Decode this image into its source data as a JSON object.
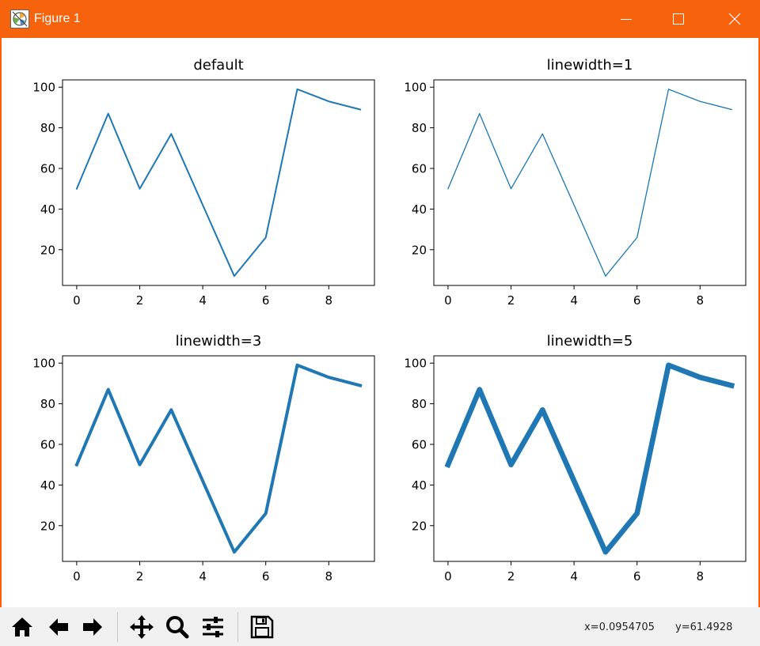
{
  "window": {
    "title": "Figure 1",
    "accent_color": "#f7630c",
    "controls": [
      "minimize-icon",
      "maximize-icon",
      "close-icon"
    ]
  },
  "toolbar": {
    "buttons": [
      {
        "name": "home-button",
        "icon": "home-icon"
      },
      {
        "name": "back-button",
        "icon": "arrow-left-icon"
      },
      {
        "name": "forward-button",
        "icon": "arrow-right-icon"
      },
      {
        "name": "pan-button",
        "icon": "move-icon"
      },
      {
        "name": "zoom-button",
        "icon": "magnifier-icon"
      },
      {
        "name": "subplots-button",
        "icon": "sliders-icon"
      },
      {
        "name": "save-button",
        "icon": "floppy-icon"
      }
    ],
    "coords_x": "x=0.0954705",
    "coords_y": "y=61.4928"
  },
  "chart_data": [
    {
      "type": "line",
      "title": "default",
      "x": [
        0,
        1,
        2,
        3,
        4,
        5,
        6,
        7,
        8,
        9
      ],
      "series": [
        {
          "values": [
            50,
            87,
            50,
            77,
            42,
            7,
            26,
            99,
            93,
            89
          ],
          "color": "#1f77b4",
          "linewidth": 1.5
        }
      ],
      "xlim": [
        -0.45,
        9.45
      ],
      "ylim": [
        2.4,
        103.6
      ],
      "xticks": [
        0,
        2,
        4,
        6,
        8
      ],
      "yticks": [
        20,
        40,
        60,
        80,
        100
      ],
      "xtick_labels": [
        "0",
        "2",
        "4",
        "6",
        "8"
      ],
      "ytick_labels": [
        "20",
        "40",
        "60",
        "80",
        "100"
      ],
      "xlabel": "",
      "ylabel": "",
      "grid": false
    },
    {
      "type": "line",
      "title": "linewidth=1",
      "x": [
        0,
        1,
        2,
        3,
        4,
        5,
        6,
        7,
        8,
        9
      ],
      "series": [
        {
          "values": [
            50,
            87,
            50,
            77,
            42,
            7,
            26,
            99,
            93,
            89
          ],
          "color": "#1f77b4",
          "linewidth": 1
        }
      ],
      "xlim": [
        -0.45,
        9.45
      ],
      "ylim": [
        2.4,
        103.6
      ],
      "xticks": [
        0,
        2,
        4,
        6,
        8
      ],
      "yticks": [
        20,
        40,
        60,
        80,
        100
      ],
      "xtick_labels": [
        "0",
        "2",
        "4",
        "6",
        "8"
      ],
      "ytick_labels": [
        "20",
        "40",
        "60",
        "80",
        "100"
      ],
      "xlabel": "",
      "ylabel": "",
      "grid": false
    },
    {
      "type": "line",
      "title": "linewidth=3",
      "x": [
        0,
        1,
        2,
        3,
        4,
        5,
        6,
        7,
        8,
        9
      ],
      "series": [
        {
          "values": [
            50,
            87,
            50,
            77,
            42,
            7,
            26,
            99,
            93,
            89
          ],
          "color": "#1f77b4",
          "linewidth": 3
        }
      ],
      "xlim": [
        -0.45,
        9.45
      ],
      "ylim": [
        2.4,
        103.6
      ],
      "xticks": [
        0,
        2,
        4,
        6,
        8
      ],
      "yticks": [
        20,
        40,
        60,
        80,
        100
      ],
      "xtick_labels": [
        "0",
        "2",
        "4",
        "6",
        "8"
      ],
      "ytick_labels": [
        "20",
        "40",
        "60",
        "80",
        "100"
      ],
      "xlabel": "",
      "ylabel": "",
      "grid": false
    },
    {
      "type": "line",
      "title": "linewidth=5",
      "x": [
        0,
        1,
        2,
        3,
        4,
        5,
        6,
        7,
        8,
        9
      ],
      "series": [
        {
          "values": [
            50,
            87,
            50,
            77,
            42,
            7,
            26,
            99,
            93,
            89
          ],
          "color": "#1f77b4",
          "linewidth": 5
        }
      ],
      "xlim": [
        -0.45,
        9.45
      ],
      "ylim": [
        2.4,
        103.6
      ],
      "xticks": [
        0,
        2,
        4,
        6,
        8
      ],
      "yticks": [
        20,
        40,
        60,
        80,
        100
      ],
      "xtick_labels": [
        "0",
        "2",
        "4",
        "6",
        "8"
      ],
      "ytick_labels": [
        "20",
        "40",
        "60",
        "80",
        "100"
      ],
      "xlabel": "",
      "ylabel": "",
      "grid": false
    }
  ]
}
